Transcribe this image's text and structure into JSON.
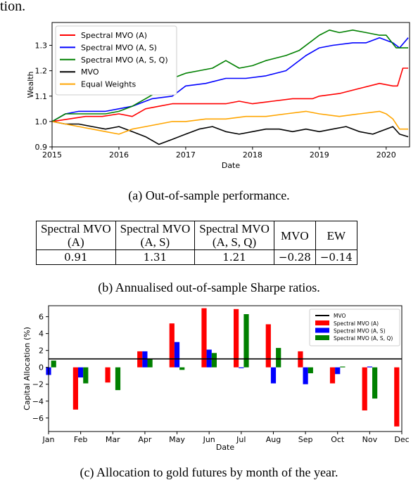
{
  "page": {
    "top_fragment": "tion.",
    "caption_a": "(a) Out-of-sample performance.",
    "caption_b": "(b) Annualised out-of-sample Sharpe ratios.",
    "caption_c": "(c) Allocation to gold futures by month of the year."
  },
  "sharpe_table": {
    "headers": [
      [
        "Spectral MVO",
        "(A)"
      ],
      [
        "Spectral MVO",
        "(A, S)"
      ],
      [
        "Spectral MVO",
        "(A, S, Q)"
      ],
      [
        "MVO"
      ],
      [
        "EW"
      ]
    ],
    "values": [
      "0.91",
      "1.31",
      "1.21",
      "−0.28",
      "−0.14"
    ]
  },
  "chart_data": [
    {
      "type": "line",
      "xlabel": "Date",
      "ylabel": "Wealth",
      "xlim": [
        2015.0,
        2020.35
      ],
      "ylim": [
        0.9,
        1.39
      ],
      "xticks": [
        "2015",
        "2016",
        "2017",
        "2018",
        "2019",
        "2020"
      ],
      "yticks": [
        "0.9",
        "1.0",
        "1.1",
        "1.2",
        "1.3"
      ],
      "legend_position": "top-left",
      "series": [
        {
          "name": "Spectral MVO (A)",
          "color": "#ff0000",
          "points": [
            [
              2015.0,
              1.0
            ],
            [
              2015.25,
              1.01
            ],
            [
              2015.5,
              1.02
            ],
            [
              2015.75,
              1.02
            ],
            [
              2016.0,
              1.03
            ],
            [
              2016.2,
              1.02
            ],
            [
              2016.4,
              1.05
            ],
            [
              2016.6,
              1.06
            ],
            [
              2016.8,
              1.07
            ],
            [
              2017.0,
              1.07
            ],
            [
              2017.3,
              1.07
            ],
            [
              2017.6,
              1.07
            ],
            [
              2017.8,
              1.08
            ],
            [
              2018.0,
              1.07
            ],
            [
              2018.3,
              1.08
            ],
            [
              2018.6,
              1.09
            ],
            [
              2018.9,
              1.09
            ],
            [
              2019.0,
              1.1
            ],
            [
              2019.3,
              1.11
            ],
            [
              2019.6,
              1.13
            ],
            [
              2019.9,
              1.15
            ],
            [
              2020.1,
              1.14
            ],
            [
              2020.17,
              1.14
            ],
            [
              2020.25,
              1.21
            ],
            [
              2020.33,
              1.21
            ]
          ]
        },
        {
          "name": "Spectral MVO (A, S)",
          "color": "#0000ff",
          "points": [
            [
              2015.0,
              1.0
            ],
            [
              2015.2,
              1.03
            ],
            [
              2015.4,
              1.04
            ],
            [
              2015.6,
              1.04
            ],
            [
              2015.8,
              1.04
            ],
            [
              2016.0,
              1.05
            ],
            [
              2016.2,
              1.06
            ],
            [
              2016.5,
              1.09
            ],
            [
              2016.8,
              1.1
            ],
            [
              2017.0,
              1.14
            ],
            [
              2017.3,
              1.15
            ],
            [
              2017.6,
              1.17
            ],
            [
              2017.9,
              1.17
            ],
            [
              2018.2,
              1.18
            ],
            [
              2018.5,
              1.2
            ],
            [
              2018.8,
              1.26
            ],
            [
              2019.0,
              1.29
            ],
            [
              2019.2,
              1.3
            ],
            [
              2019.5,
              1.31
            ],
            [
              2019.7,
              1.31
            ],
            [
              2019.9,
              1.33
            ],
            [
              2020.1,
              1.31
            ],
            [
              2020.2,
              1.29
            ],
            [
              2020.33,
              1.33
            ]
          ]
        },
        {
          "name": "Spectral MVO (A, S, Q)",
          "color": "#008000",
          "points": [
            [
              2015.0,
              1.0
            ],
            [
              2015.2,
              1.03
            ],
            [
              2015.4,
              1.03
            ],
            [
              2015.6,
              1.03
            ],
            [
              2015.8,
              1.03
            ],
            [
              2016.0,
              1.04
            ],
            [
              2016.2,
              1.06
            ],
            [
              2016.4,
              1.09
            ],
            [
              2016.6,
              1.12
            ],
            [
              2016.8,
              1.17
            ],
            [
              2017.0,
              1.19
            ],
            [
              2017.2,
              1.2
            ],
            [
              2017.4,
              1.21
            ],
            [
              2017.6,
              1.24
            ],
            [
              2017.8,
              1.21
            ],
            [
              2018.0,
              1.22
            ],
            [
              2018.2,
              1.24
            ],
            [
              2018.5,
              1.26
            ],
            [
              2018.7,
              1.28
            ],
            [
              2019.0,
              1.34
            ],
            [
              2019.15,
              1.36
            ],
            [
              2019.3,
              1.35
            ],
            [
              2019.5,
              1.36
            ],
            [
              2019.7,
              1.35
            ],
            [
              2019.9,
              1.34
            ],
            [
              2020.0,
              1.34
            ],
            [
              2020.15,
              1.29
            ],
            [
              2020.33,
              1.29
            ]
          ]
        },
        {
          "name": "MVO",
          "color": "#000000",
          "points": [
            [
              2015.0,
              1.0
            ],
            [
              2015.2,
              0.99
            ],
            [
              2015.4,
              0.99
            ],
            [
              2015.6,
              0.98
            ],
            [
              2015.8,
              0.97
            ],
            [
              2016.0,
              0.98
            ],
            [
              2016.2,
              0.96
            ],
            [
              2016.4,
              0.94
            ],
            [
              2016.6,
              0.91
            ],
            [
              2016.8,
              0.93
            ],
            [
              2017.0,
              0.95
            ],
            [
              2017.2,
              0.97
            ],
            [
              2017.4,
              0.98
            ],
            [
              2017.6,
              0.96
            ],
            [
              2017.8,
              0.95
            ],
            [
              2018.0,
              0.96
            ],
            [
              2018.2,
              0.97
            ],
            [
              2018.4,
              0.97
            ],
            [
              2018.6,
              0.96
            ],
            [
              2018.8,
              0.97
            ],
            [
              2019.0,
              0.96
            ],
            [
              2019.2,
              0.97
            ],
            [
              2019.4,
              0.98
            ],
            [
              2019.6,
              0.96
            ],
            [
              2019.8,
              0.95
            ],
            [
              2019.9,
              0.96
            ],
            [
              2020.0,
              0.97
            ],
            [
              2020.1,
              0.98
            ],
            [
              2020.2,
              0.95
            ],
            [
              2020.33,
              0.94
            ]
          ]
        },
        {
          "name": "Equal Weights",
          "color": "#ffa500",
          "points": [
            [
              2015.0,
              1.0
            ],
            [
              2015.2,
              0.99
            ],
            [
              2015.4,
              0.98
            ],
            [
              2015.6,
              0.97
            ],
            [
              2015.8,
              0.96
            ],
            [
              2016.0,
              0.95
            ],
            [
              2016.2,
              0.97
            ],
            [
              2016.4,
              0.98
            ],
            [
              2016.6,
              0.99
            ],
            [
              2016.8,
              1.0
            ],
            [
              2017.0,
              1.0
            ],
            [
              2017.3,
              1.01
            ],
            [
              2017.6,
              1.01
            ],
            [
              2017.9,
              1.02
            ],
            [
              2018.2,
              1.02
            ],
            [
              2018.5,
              1.03
            ],
            [
              2018.8,
              1.04
            ],
            [
              2019.0,
              1.03
            ],
            [
              2019.3,
              1.02
            ],
            [
              2019.6,
              1.03
            ],
            [
              2019.9,
              1.04
            ],
            [
              2020.0,
              1.03
            ],
            [
              2020.1,
              1.01
            ],
            [
              2020.2,
              0.97
            ],
            [
              2020.33,
              0.97
            ]
          ]
        }
      ]
    },
    {
      "type": "bar",
      "xlabel": "Date",
      "ylabel": "Capital Allocation (%)",
      "ylim": [
        -7.6,
        7.3
      ],
      "yticks": [
        "−6",
        "−4",
        "−2",
        "0",
        "2",
        "4",
        "6"
      ],
      "categories": [
        "Jan",
        "Feb",
        "Mar",
        "Apr",
        "May",
        "Jun",
        "Jul",
        "Aug",
        "Sep",
        "Oct",
        "Nov",
        "Dec"
      ],
      "reference_line": {
        "name": "MVO",
        "value": 1.0,
        "color": "#000000"
      },
      "legend_position": "top-right",
      "series": [
        {
          "name": "Spectral MVO (A)",
          "color": "#ff0000",
          "values": [
            0.0,
            -5.0,
            -1.8,
            1.9,
            5.2,
            7.0,
            6.9,
            5.1,
            1.9,
            -1.9,
            -5.1,
            -7.0
          ]
        },
        {
          "name": "Spectral MVO (A, S)",
          "color": "#0000ff",
          "values": [
            -0.9,
            -1.2,
            0.0,
            1.9,
            3.0,
            2.1,
            -0.1,
            -1.9,
            -2.0,
            -0.8,
            0.1,
            0.0
          ]
        },
        {
          "name": "Spectral MVO (A, S, Q)",
          "color": "#008000",
          "values": [
            0.8,
            -1.9,
            -2.7,
            1.0,
            -0.3,
            1.7,
            6.3,
            2.3,
            -0.7,
            0.1,
            -3.7,
            0.0
          ]
        }
      ]
    }
  ]
}
